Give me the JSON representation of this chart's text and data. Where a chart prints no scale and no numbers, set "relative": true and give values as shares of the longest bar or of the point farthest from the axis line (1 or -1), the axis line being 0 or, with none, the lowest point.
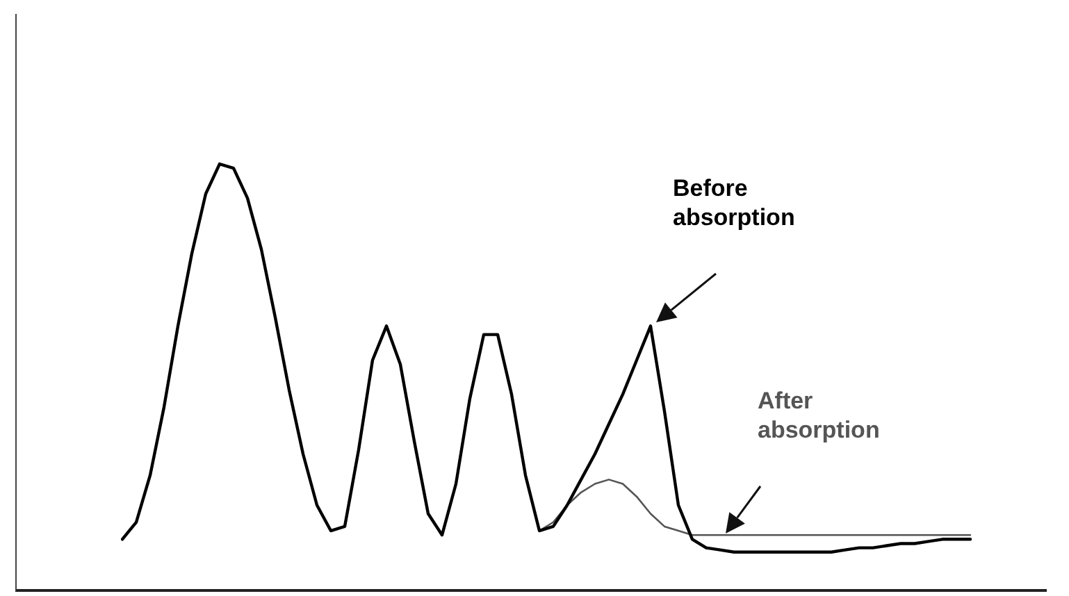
{
  "chart_data": {
    "type": "line",
    "relative": true,
    "legend": false,
    "marker": "none",
    "categories": [
      null,
      null,
      null,
      null,
      null,
      null,
      null,
      null,
      null,
      null,
      null,
      null,
      null,
      null,
      null,
      null,
      null,
      null,
      null,
      null,
      null,
      null,
      null,
      null,
      null,
      null,
      null,
      null,
      null,
      null,
      null,
      null,
      null,
      null,
      null,
      null,
      null,
      null,
      null,
      null,
      null,
      null,
      null,
      null,
      null,
      null,
      null,
      null,
      null,
      null,
      null,
      null,
      null,
      null,
      null,
      null,
      null,
      null,
      null,
      null,
      null,
      null
    ],
    "series": [
      {
        "name": "Before absorption",
        "color": "#000000",
        "values": [
          0.12,
          0.16,
          0.27,
          0.43,
          0.62,
          0.79,
          0.93,
          1,
          0.99,
          0.92,
          0.8,
          0.64,
          0.47,
          0.32,
          0.2,
          0.14,
          0.15,
          0.33,
          0.54,
          0.62,
          0.53,
          0.35,
          0.18,
          0.13,
          0.25,
          0.45,
          0.6,
          0.6,
          0.46,
          0.27,
          0.14,
          0.15,
          0.2,
          0.26,
          0.32,
          0.39,
          0.46,
          0.54,
          0.62,
          0.42,
          0.2,
          0.12,
          0.1,
          0.095,
          0.09,
          0.09,
          0.09,
          0.09,
          0.09,
          0.09,
          0.09,
          0.09,
          0.095,
          0.1,
          0.1,
          0.105,
          0.11,
          0.11,
          0.115,
          0.12,
          0.12,
          0.12
        ]
      },
      {
        "name": "After absorption",
        "color": "#555555",
        "values": [
          null,
          null,
          null,
          null,
          null,
          null,
          null,
          null,
          null,
          null,
          null,
          null,
          null,
          null,
          null,
          null,
          null,
          null,
          null,
          null,
          null,
          null,
          null,
          null,
          null,
          null,
          null,
          null,
          null,
          null,
          0.14,
          0.16,
          0.2,
          0.23,
          0.25,
          0.26,
          0.25,
          0.22,
          0.18,
          0.15,
          0.14,
          0.13,
          0.13,
          0.13,
          0.13,
          0.13,
          0.13,
          0.13,
          0.13,
          0.13,
          0.13,
          0.13,
          0.13,
          0.13,
          0.13,
          0.13,
          0.13,
          0.13,
          0.13,
          0.13,
          0.13,
          0.13
        ]
      }
    ]
  }
}
